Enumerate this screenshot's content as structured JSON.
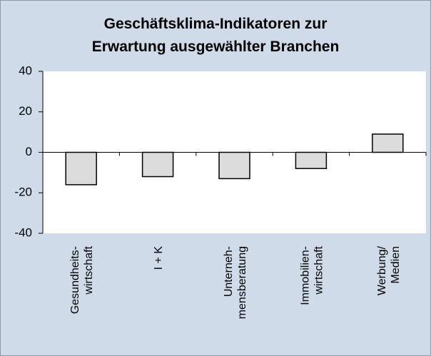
{
  "chart_data": {
    "type": "bar",
    "title": "Geschäftsklima-Indikatoren zur\nErwartung ausgewählter Branchen",
    "categories": [
      "Gesundheits-\nwirtschaft",
      "I + K",
      "Unterneh-\nmensberatung",
      "Immobilien-\nwirtschaft",
      "Werbung/\nMedien"
    ],
    "values": [
      -16,
      -12,
      -13,
      -8,
      9
    ],
    "color": "#dcdcdc",
    "ylim": [
      -40,
      40
    ],
    "yticks": [
      -40,
      -20,
      0,
      20,
      40
    ],
    "grid": false
  }
}
